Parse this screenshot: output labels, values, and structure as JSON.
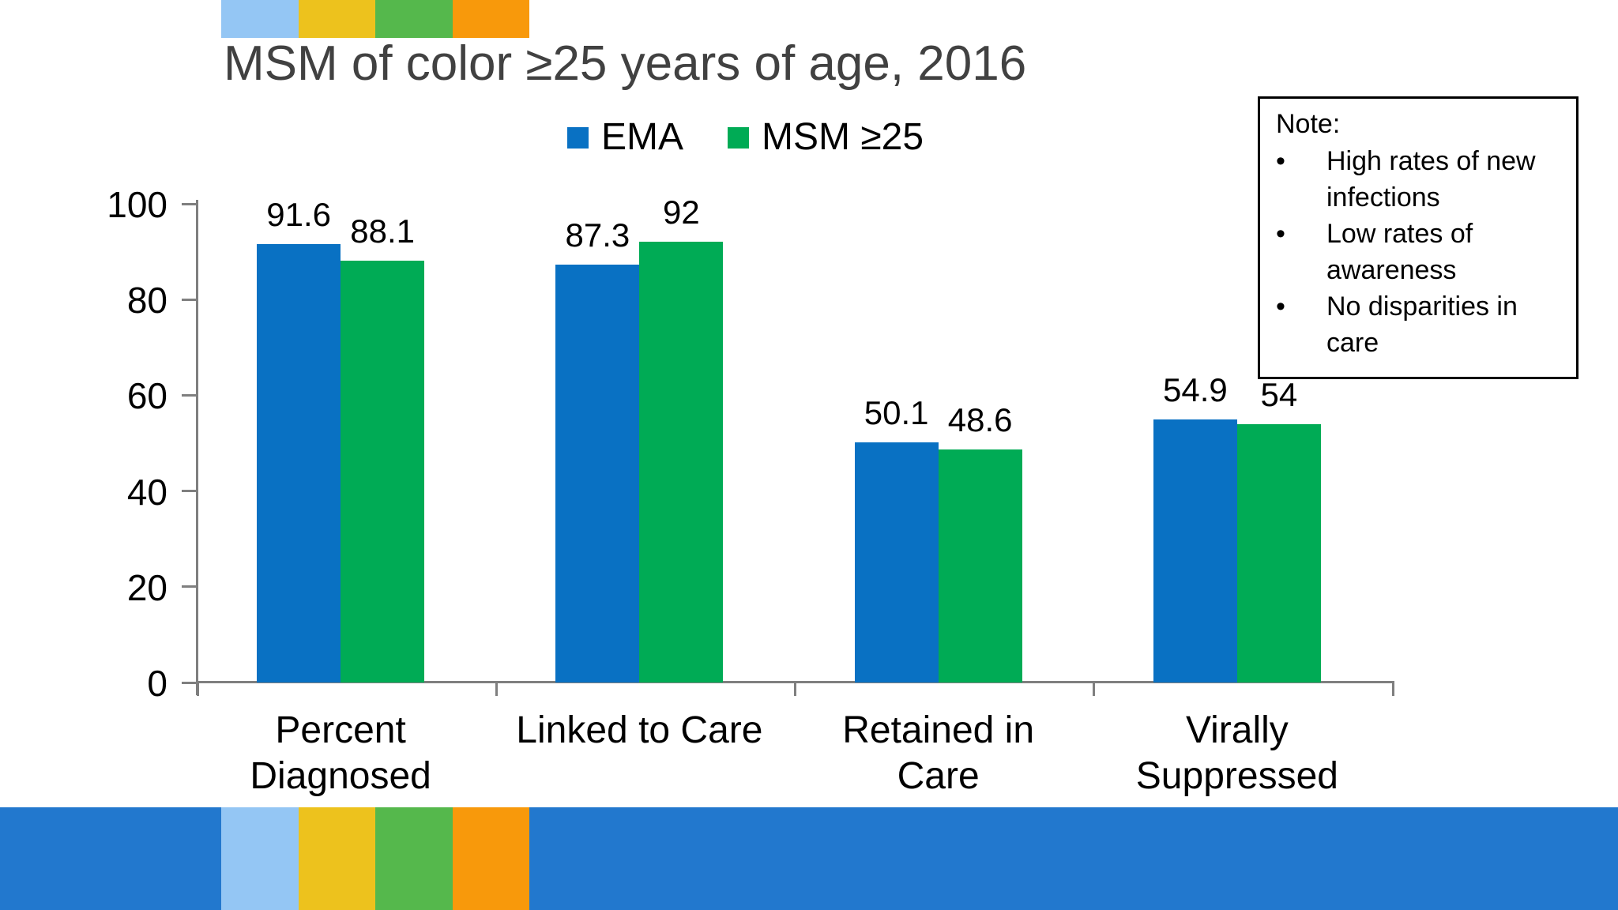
{
  "slide": {
    "title": "MSM of color ≥25 years of age, 2016",
    "title_color": "#414141",
    "accent_colors": [
      "#94C6F4",
      "#EDC21D",
      "#55B84C",
      "#F8990B"
    ],
    "footer_band_color": "#2278CE",
    "axis_color": "#7F7F7F"
  },
  "note_box": {
    "heading": "Note:",
    "bullet_glyph": "•",
    "bullets": [
      "High rates of new infections",
      "Low rates of awareness",
      "No disparities in care"
    ]
  },
  "chart_data": {
    "type": "bar",
    "title": "MSM of color ≥25 years of age, 2016",
    "categories": [
      "Percent Diagnosed",
      "Linked to Care",
      "Retained in Care",
      "Virally Suppressed"
    ],
    "category_label_lines": [
      [
        "Percent",
        "Diagnosed"
      ],
      [
        "Linked to Care"
      ],
      [
        "Retained in",
        "Care"
      ],
      [
        "Virally",
        "Suppressed"
      ]
    ],
    "series": [
      {
        "name": "EMA",
        "color": "#0971C3",
        "values": [
          91.6,
          87.3,
          50.1,
          54.9
        ],
        "labels": [
          "91.6",
          "87.3",
          "50.1",
          "54.9"
        ]
      },
      {
        "name": "MSM ≥25",
        "color": "#00AB55",
        "values": [
          88.1,
          92,
          48.6,
          54
        ],
        "labels": [
          "88.1",
          "92",
          "48.6",
          "54"
        ]
      }
    ],
    "xlabel": "",
    "ylabel": "",
    "ylim": [
      0,
      100
    ],
    "yticks": [
      100,
      80,
      60,
      40,
      20,
      0
    ],
    "grid": false,
    "legend_position": "top"
  }
}
